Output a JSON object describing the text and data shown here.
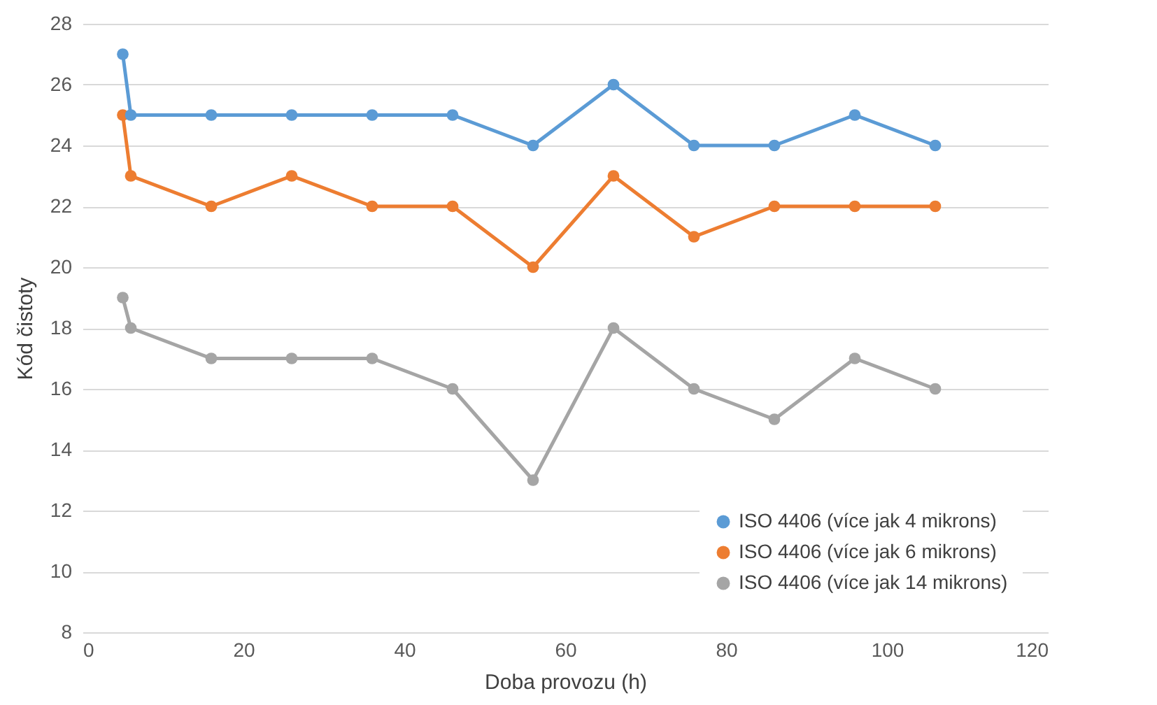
{
  "chart_data": {
    "type": "line",
    "xlabel": "Doba provozu (h)",
    "ylabel": "Kód čistoty",
    "x": [
      5,
      6,
      16,
      26,
      36,
      46,
      56,
      66,
      76,
      86,
      96,
      106
    ],
    "series": [
      {
        "name": "ISO 4406 (více jak 4 mikrons)",
        "color": "#5b9bd5",
        "values": [
          27,
          25,
          25,
          25,
          25,
          25,
          24,
          26,
          24,
          24,
          25,
          24
        ]
      },
      {
        "name": "ISO 4406 (více jak 6 mikrons)",
        "color": "#ed7d31",
        "values": [
          25,
          23,
          22,
          23,
          22,
          22,
          20,
          23,
          21,
          22,
          22,
          22
        ]
      },
      {
        "name": "ISO 4406 (více jak 14 mikrons)",
        "color": "#a5a5a5",
        "values": [
          19,
          18,
          17,
          17,
          17,
          16,
          13,
          18,
          16,
          15,
          17,
          16
        ]
      }
    ],
    "xlim": [
      0,
      120
    ],
    "xticks": [
      0,
      20,
      40,
      60,
      80,
      100,
      120
    ],
    "ylim": [
      8,
      28
    ],
    "yticks": [
      8,
      10,
      12,
      14,
      16,
      18,
      20,
      22,
      24,
      26,
      28
    ],
    "grid": "y",
    "legend": "bottom right",
    "marker": "circle",
    "line_style": "solid"
  }
}
